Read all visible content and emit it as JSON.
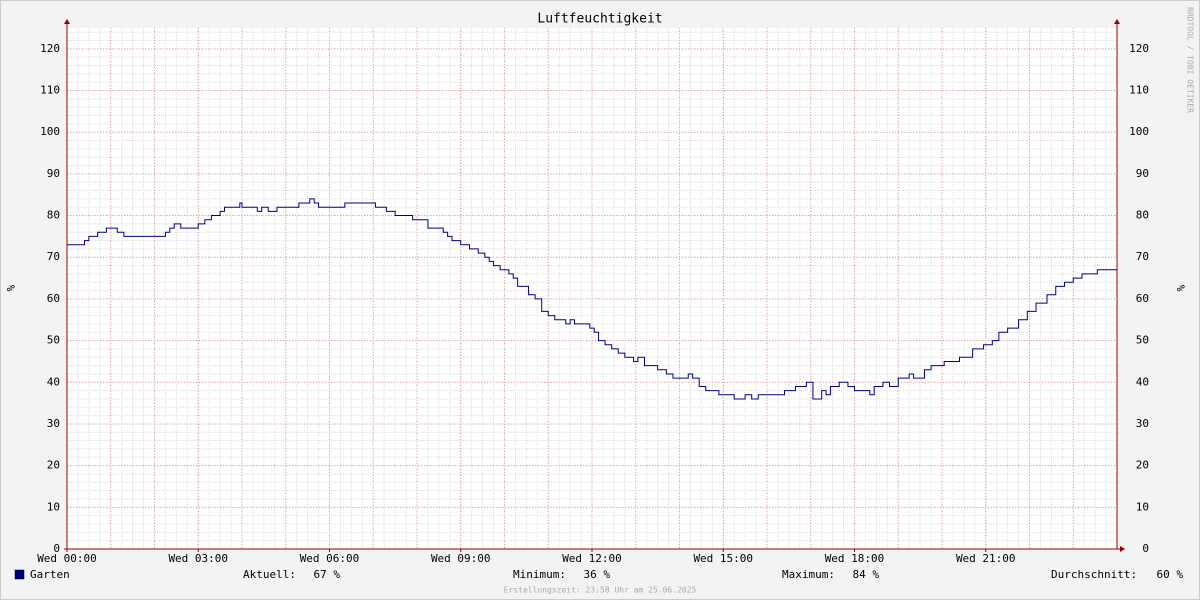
{
  "chart_data": {
    "type": "step-line",
    "title": "Luftfeuchtigkeit",
    "y_label": "%",
    "side_text": "RRDTOOL / TOBI OETIKER",
    "footer": "Erstellungszeit: 23:58 Uhr am 25.06.2025",
    "xlim": [
      0,
      24
    ],
    "xticks": [
      {
        "value": 0,
        "label": "Wed 00:00"
      },
      {
        "value": 3,
        "label": "Wed 03:00"
      },
      {
        "value": 6,
        "label": "Wed 06:00"
      },
      {
        "value": 9,
        "label": "Wed 09:00"
      },
      {
        "value": 12,
        "label": "Wed 12:00"
      },
      {
        "value": 15,
        "label": "Wed 15:00"
      },
      {
        "value": 18,
        "label": "Wed 18:00"
      },
      {
        "value": 21,
        "label": "Wed 21:00"
      }
    ],
    "ylim": [
      0,
      125
    ],
    "yticks": [
      0,
      10,
      20,
      30,
      40,
      50,
      60,
      70,
      80,
      90,
      100,
      110,
      120
    ],
    "grid": true,
    "x": [
      0,
      0.4,
      0.5,
      0.7,
      0.9,
      1.15,
      1.3,
      2.25,
      2.35,
      2.45,
      2.6,
      3.0,
      3.15,
      3.3,
      3.5,
      3.6,
      3.95,
      4.0,
      4.35,
      4.45,
      4.6,
      4.8,
      5.3,
      5.55,
      5.65,
      5.75,
      6.35,
      7.05,
      7.3,
      7.5,
      7.9,
      8.25,
      8.6,
      8.7,
      8.8,
      9.0,
      9.2,
      9.4,
      9.55,
      9.65,
      9.75,
      9.9,
      10.1,
      10.2,
      10.3,
      10.55,
      10.7,
      10.85,
      11.0,
      11.15,
      11.4,
      11.5,
      11.6,
      11.95,
      12.05,
      12.15,
      12.3,
      12.45,
      12.6,
      12.75,
      12.95,
      13.05,
      13.2,
      13.5,
      13.7,
      13.85,
      14.2,
      14.3,
      14.45,
      14.6,
      14.9,
      15.25,
      15.5,
      15.65,
      15.8,
      16.4,
      16.65,
      16.9,
      17.05,
      17.25,
      17.35,
      17.45,
      17.65,
      17.85,
      18.0,
      18.35,
      18.45,
      18.65,
      18.8,
      19.0,
      19.25,
      19.35,
      19.6,
      19.75,
      20.05,
      20.4,
      20.7,
      20.95,
      21.15,
      21.3,
      21.5,
      21.75,
      21.95,
      22.15,
      22.4,
      22.6,
      22.8,
      23.0,
      23.2,
      23.55,
      24
    ],
    "series": [
      {
        "name": "Garten",
        "color": "#00007f",
        "values": [
          73,
          74,
          75,
          76,
          77,
          76,
          75,
          76,
          77,
          78,
          77,
          78,
          79,
          80,
          81,
          82,
          83,
          82,
          81,
          82,
          81,
          82,
          83,
          84,
          83,
          82,
          83,
          82,
          81,
          80,
          79,
          77,
          76,
          75,
          74,
          73,
          72,
          71,
          70,
          69,
          68,
          67,
          66,
          65,
          63,
          61,
          60,
          57,
          56,
          55,
          54,
          55,
          54,
          53,
          52,
          50,
          49,
          48,
          47,
          46,
          45,
          46,
          44,
          43,
          42,
          41,
          42,
          41,
          39,
          38,
          37,
          36,
          37,
          36,
          37,
          38,
          39,
          40,
          36,
          38,
          37,
          39,
          40,
          39,
          38,
          37,
          39,
          40,
          39,
          41,
          42,
          41,
          43,
          44,
          45,
          46,
          48,
          49,
          50,
          52,
          53,
          55,
          57,
          59,
          61,
          63,
          64,
          65,
          66,
          67,
          67
        ]
      }
    ],
    "stats": [
      {
        "label": "Aktuell:",
        "value": "67 %"
      },
      {
        "label": "Minimum:",
        "value": "36 %"
      },
      {
        "label": "Maximum:",
        "value": "84 %"
      },
      {
        "label": "Durchschnitt:",
        "value": "60 %"
      }
    ]
  }
}
